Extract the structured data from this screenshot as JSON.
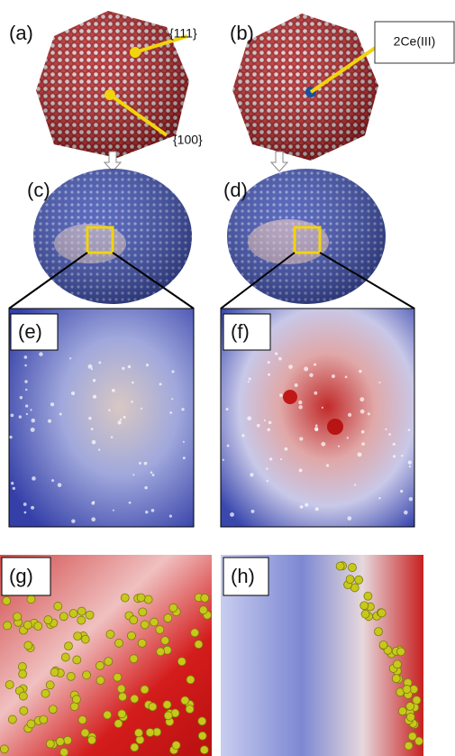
{
  "labels": {
    "a": "(a)",
    "b": "(b)",
    "c": "(c)",
    "d": "(d)",
    "e": "(e)",
    "f": "(f)",
    "g": "(g)",
    "h": "(h)"
  },
  "annotations": {
    "facet_111": "{111}",
    "facet_100": "{100}",
    "ce3": "2Ce(III)"
  }
}
